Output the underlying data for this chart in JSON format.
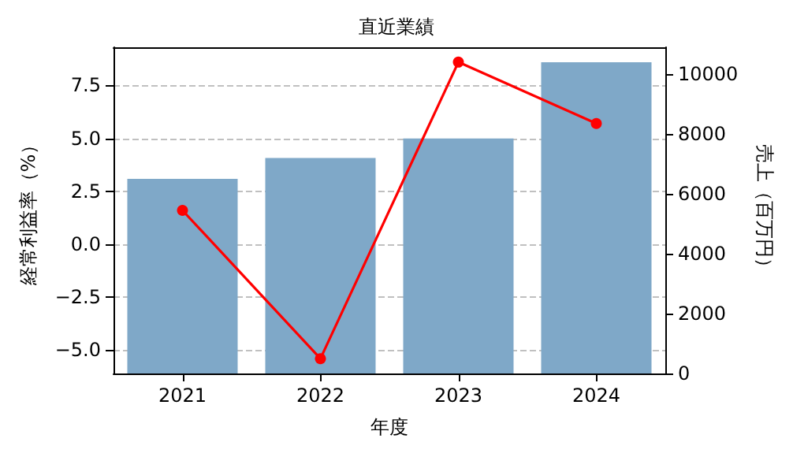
{
  "chart_data": {
    "type": "bar",
    "title": "直近業績",
    "xlabel": "年度",
    "ylabel": "経常利益率（%）",
    "y2label": "売上（百万円）",
    "categories": [
      "2021",
      "2022",
      "2023",
      "2024"
    ],
    "series": [
      {
        "axis": "y2",
        "color": "#7fa8c8",
        "values": [
          6500,
          7200,
          7850,
          10400
        ]
      },
      {
        "type": "line",
        "color": "#ff0000",
        "values": [
          1.6,
          -5.4,
          8.6,
          5.7
        ]
      }
    ],
    "ylim": [
      -6.1,
      9.3
    ],
    "yticks": [
      {
        "value": -5,
        "label": "−5.0"
      },
      {
        "value": -2.5,
        "label": "−2.5"
      },
      {
        "value": 0,
        "label": "0.0"
      },
      {
        "value": 2.5,
        "label": "2.5"
      },
      {
        "value": 5,
        "label": "5.0"
      },
      {
        "value": 7.5,
        "label": "7.5"
      }
    ],
    "y2lim": [
      0,
      10900
    ],
    "y2ticks": [
      0,
      2000,
      4000,
      6000,
      8000,
      10000
    ],
    "grid": "y",
    "marker": "circle",
    "line_style": "solid"
  }
}
